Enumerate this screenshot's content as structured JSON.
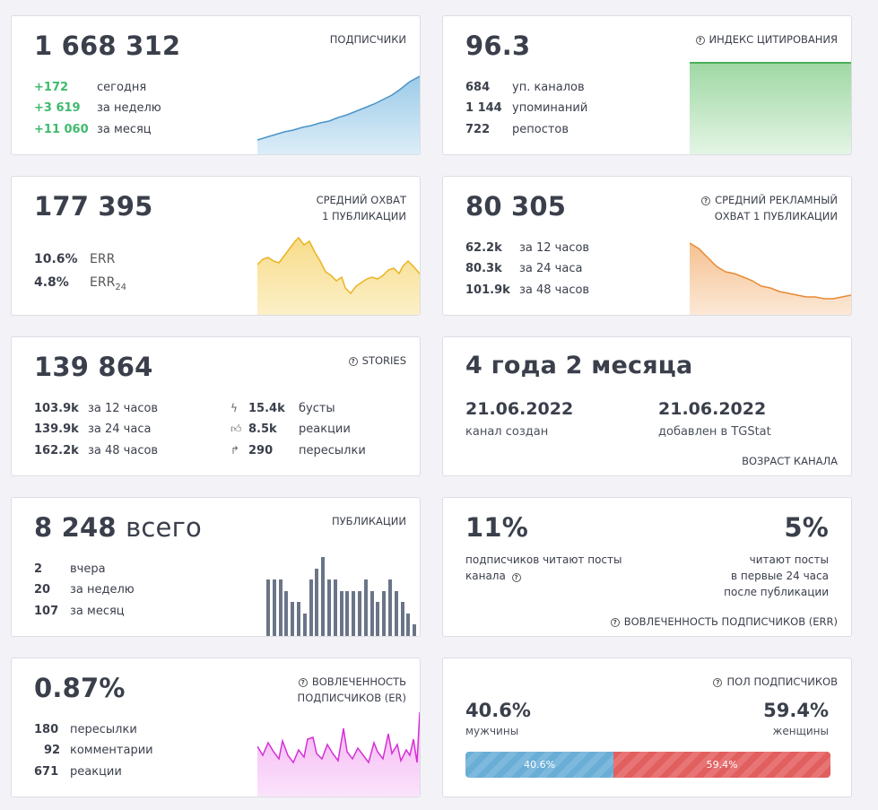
{
  "subscribers": {
    "total": "1 668 312",
    "title": "ПОДПИСЧИКИ",
    "rows": [
      {
        "value": "+172",
        "label": "сегодня"
      },
      {
        "value": "+3 619",
        "label": "за неделю"
      },
      {
        "value": "+11 060",
        "label": "за месяц"
      }
    ],
    "color": "#4a94c7"
  },
  "citation": {
    "total": "96.3",
    "title": "ИНДЕКС ЦИТИРОВАНИЯ",
    "rows": [
      {
        "value": "684",
        "label": "уп. каналов"
      },
      {
        "value": "1 144",
        "label": "упоминаний"
      },
      {
        "value": "722",
        "label": "репостов"
      }
    ],
    "color": "#4caf5a"
  },
  "reach": {
    "total": "177 395",
    "title_line1": "СРЕДНИЙ ОХВАТ",
    "title_line2": "1 ПУБЛИКАЦИИ",
    "rows": [
      {
        "value": "10.6%",
        "label": "ERR"
      },
      {
        "value": "4.8%",
        "label": "ERR",
        "sub": "24"
      }
    ],
    "color": "#f0c23a"
  },
  "ad_reach": {
    "total": "80 305",
    "title_line1": "СРЕДНИЙ РЕКЛАМНЫЙ",
    "title_line2": "ОХВАТ 1 ПУБЛИКАЦИИ",
    "rows": [
      {
        "value": "62.2k",
        "label": "за 12 часов"
      },
      {
        "value": "80.3k",
        "label": "за 24 часа"
      },
      {
        "value": "101.9k",
        "label": "за 48 часов"
      }
    ],
    "color": "#e88a35"
  },
  "stories": {
    "total": "139 864",
    "title": "STORIES",
    "rows": [
      {
        "value": "103.9k",
        "label": "за 12 часов"
      },
      {
        "value": "139.9k",
        "label": "за 24 часа"
      },
      {
        "value": "162.2k",
        "label": "за 48 часов"
      }
    ],
    "stats": [
      {
        "icon": "lightning-icon",
        "value": "15.4k",
        "label": "бусты"
      },
      {
        "icon": "thumbs-up-icon",
        "value": "8.5k",
        "label": "реакции"
      },
      {
        "icon": "forward-arrow-icon",
        "value": "290",
        "label": "пересылки"
      }
    ]
  },
  "age": {
    "total": "4 года 2 месяца",
    "created_date": "21.06.2022",
    "created_label": "канал создан",
    "added_date": "21.06.2022",
    "added_label": "добавлен в TGStat",
    "title": "ВОЗРАСТ КАНАЛА"
  },
  "posts": {
    "total": "8 248",
    "unit": "всего",
    "title": "ПУБЛИКАЦИИ",
    "rows": [
      {
        "value": "2",
        "label": "вчера"
      },
      {
        "value": "20",
        "label": "за неделю"
      },
      {
        "value": "107",
        "label": "за месяц"
      }
    ],
    "bars": [
      5,
      5,
      5,
      4,
      3,
      3,
      2,
      5,
      6,
      7,
      5,
      5,
      4,
      4,
      4,
      4,
      5,
      4,
      3,
      4,
      5,
      4,
      3,
      2,
      1
    ]
  },
  "err": {
    "left_value": "11%",
    "left_label_line1": "подписчиков читают посты",
    "left_label_line2": "канала",
    "right_value": "5%",
    "right_label_line1": "читают посты",
    "right_label_line2": "в первые 24 часа",
    "right_label_line3": "после публикации",
    "title": "ВОВЛЕЧЕННОСТЬ ПОДПИСЧИКОВ (ERR)"
  },
  "er": {
    "total": "0.87%",
    "title_line1": "ВОВЛЕЧЕННОСТЬ",
    "title_line2": "ПОДПИСЧИКОВ (ER)",
    "rows": [
      {
        "value": "180",
        "label": "пересылки"
      },
      {
        "value": "92",
        "label": "комментарии"
      },
      {
        "value": "671",
        "label": "реакции"
      }
    ],
    "color": "#d62fd6"
  },
  "gender": {
    "title": "ПОЛ ПОДПИСЧИКОВ",
    "male_value": "40.6%",
    "male_label": "мужчины",
    "female_value": "59.4%",
    "female_label": "женщины",
    "male_bar_label": "40.6%",
    "female_bar_label": "59.4%",
    "male_fraction": 0.406
  }
}
